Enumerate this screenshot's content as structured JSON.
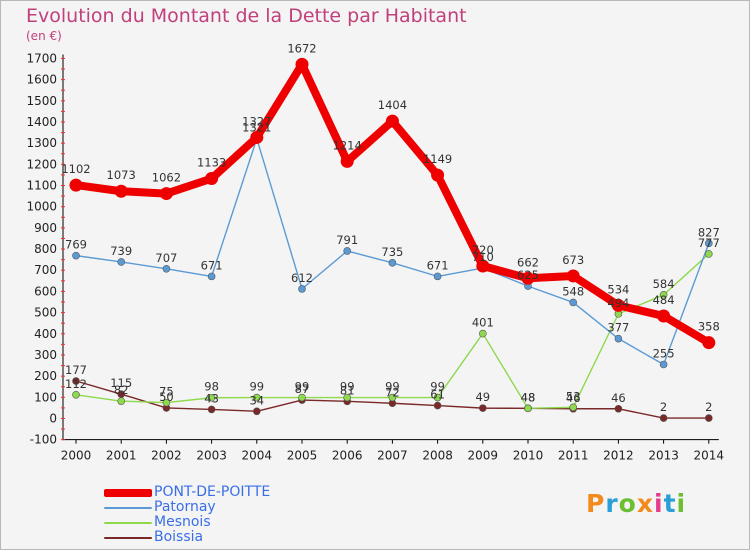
{
  "header": {
    "title": "Evolution du Montant de la Dette par Habitant",
    "unit": "(en €)"
  },
  "brand": {
    "logo_text": "Proxiti",
    "colors": [
      "#f28b1c",
      "#2a9fd6",
      "#6cbf2f",
      "#f28b1c",
      "#e63c8c",
      "#2a9fd6",
      "#6cbf2f"
    ]
  },
  "chart_data": {
    "type": "line",
    "title": "Evolution du Montant de la Dette par Habitant",
    "subtitle": "(en €)",
    "x": [
      "2000",
      "2001",
      "2002",
      "2003",
      "2004",
      "2005",
      "2006",
      "2007",
      "2008",
      "2009",
      "2010",
      "2011",
      "2012",
      "2013",
      "2014"
    ],
    "ylim": [
      -100,
      1700
    ],
    "yticks": [
      -100,
      0,
      100,
      200,
      300,
      400,
      500,
      600,
      700,
      800,
      900,
      1000,
      1100,
      1200,
      1300,
      1400,
      1500,
      1600,
      1700
    ],
    "grid": false,
    "legend_position": "bottom-left",
    "series": [
      {
        "name": "PONT-DE-POITTE",
        "color": "#ee0000",
        "values": [
          1102,
          1073,
          1062,
          1133,
          1327,
          1672,
          1214,
          1404,
          1149,
          720,
          662,
          673,
          534,
          484,
          358
        ]
      },
      {
        "name": "Patornay",
        "color": "#5b9bd5",
        "values": [
          769,
          739,
          707,
          671,
          1321,
          612,
          791,
          735,
          671,
          710,
          625,
          548,
          377,
          255,
          827
        ]
      },
      {
        "name": "Mesnois",
        "color": "#8ed94e",
        "values": [
          112,
          82,
          75,
          98,
          99,
          99,
          99,
          99,
          99,
          401,
          48,
          53,
          494,
          584,
          777
        ]
      },
      {
        "name": "Boissia",
        "color": "#7a2828",
        "values": [
          177,
          115,
          50,
          43,
          34,
          87,
          81,
          72,
          61,
          49,
          48,
          46,
          46,
          2,
          2
        ]
      }
    ]
  }
}
